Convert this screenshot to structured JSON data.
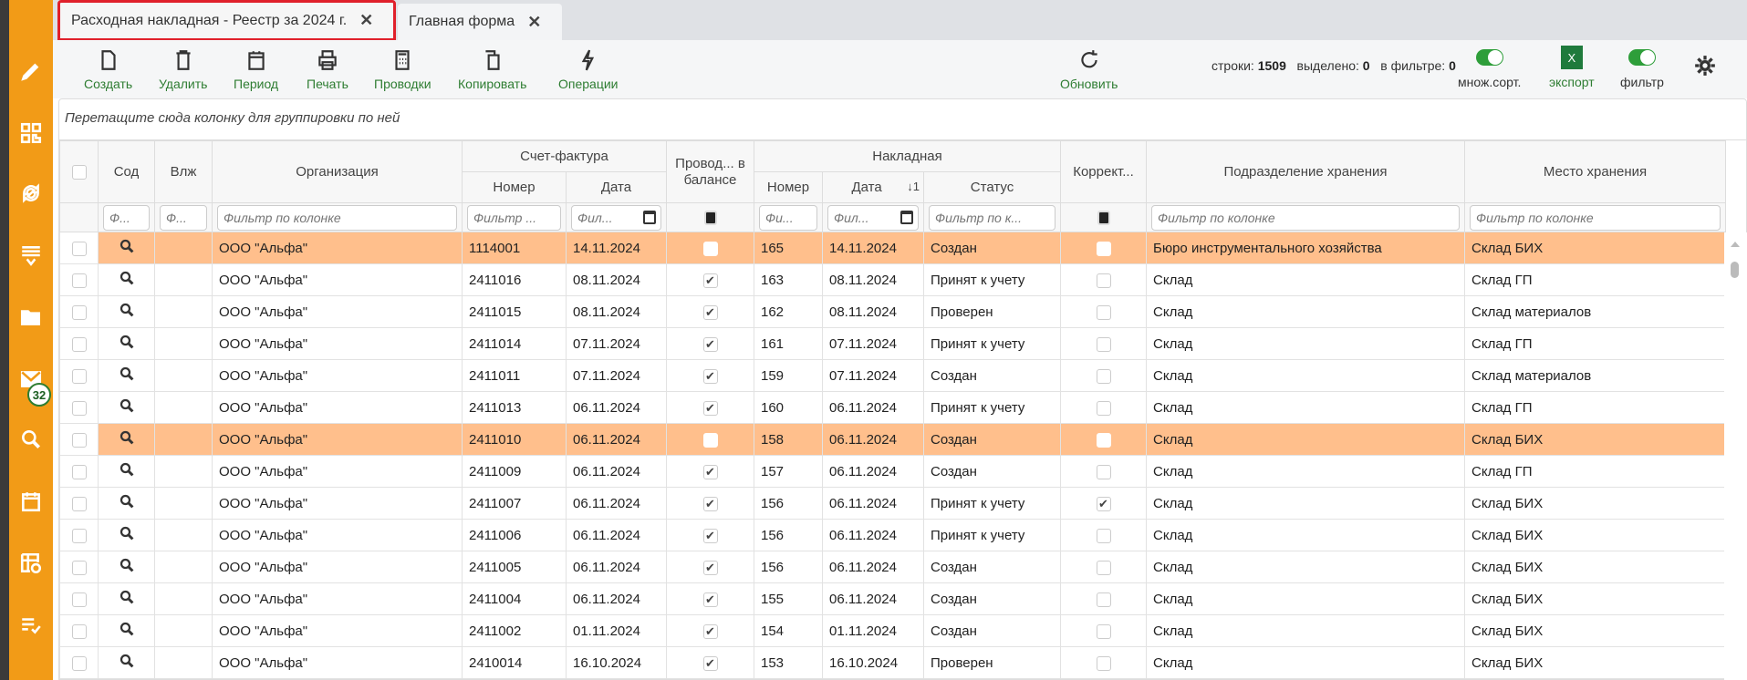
{
  "tabs": [
    {
      "label": "Расходная накладная - Реестр за 2024 г.",
      "active": true
    },
    {
      "label": "Главная форма",
      "active": false
    }
  ],
  "sidebar": {
    "items": [
      {
        "icon": "pencil-icon"
      },
      {
        "icon": "qr-code-icon"
      },
      {
        "icon": "sync-icon"
      },
      {
        "icon": "list-download-icon"
      },
      {
        "icon": "folder-open-icon"
      },
      {
        "icon": "mail-icon",
        "badge": "32"
      },
      {
        "icon": "search-icon"
      },
      {
        "icon": "calendar-icon"
      },
      {
        "icon": "table-clock-icon"
      },
      {
        "icon": "list-check-icon"
      }
    ]
  },
  "toolbar": {
    "create": "Создать",
    "delete": "Удалить",
    "period": "Период",
    "print": "Печать",
    "postings": "Проводки",
    "copy": "Копировать",
    "operations": "Операции",
    "refresh": "Обновить",
    "stats": {
      "rows_label": "строки:",
      "rows": "1509",
      "selected_label": "выделено:",
      "selected": "0",
      "filter_label": "в фильтре:",
      "filter": "0"
    },
    "multisort": "множ.сорт.",
    "export": "экспорт",
    "export_icon": "X",
    "filter_toggle": "фильтр"
  },
  "group_panel": "Перетащите сюда колонку для группировки по ней",
  "columns": {
    "sod": "Сод",
    "vlzh": "Влж",
    "org": "Организация",
    "invoice": "Счет-фактура",
    "number": "Номер",
    "date": "Дата",
    "posted": "Провод... в балансе",
    "waybill": "Накладная",
    "wb_number": "Номер",
    "wb_date": "Дата",
    "sort_indicator": "↓1",
    "status": "Статус",
    "correct": "Коррект...",
    "subdivision": "Подразделение хранения",
    "place": "Место хранения"
  },
  "filters": {
    "short": "Ф...",
    "full": "Фильтр по колонке",
    "number": "Фильтр ...",
    "date": "Фил...",
    "wb_number": "Фи...",
    "status": "Фильтр по к..."
  },
  "colors": {
    "highlight": "#ffbf8c",
    "accent": "#2e7d32",
    "sidebar": "#f29b17",
    "active_tab_border": "#e0202b"
  },
  "rows": [
    {
      "org": "ООО \"Альфа\"",
      "inv_no": "1114001",
      "inv_date": "14.11.2024",
      "posted": false,
      "wb_no": "165",
      "wb_date": "14.11.2024",
      "status": "Создан",
      "corr": false,
      "sub": "Бюро инструментального хозяйства",
      "place": "Склад БИХ",
      "hl": true
    },
    {
      "org": "ООО \"Альфа\"",
      "inv_no": "2411016",
      "inv_date": "08.11.2024",
      "posted": true,
      "wb_no": "163",
      "wb_date": "08.11.2024",
      "status": "Принят к учету",
      "corr": false,
      "sub": "Склад",
      "place": "Склад ГП"
    },
    {
      "org": "ООО \"Альфа\"",
      "inv_no": "2411015",
      "inv_date": "08.11.2024",
      "posted": true,
      "wb_no": "162",
      "wb_date": "08.11.2024",
      "status": "Проверен",
      "corr": false,
      "sub": "Склад",
      "place": "Склад материалов"
    },
    {
      "org": "ООО \"Альфа\"",
      "inv_no": "2411014",
      "inv_date": "07.11.2024",
      "posted": true,
      "wb_no": "161",
      "wb_date": "07.11.2024",
      "status": "Принят к учету",
      "corr": false,
      "sub": "Склад",
      "place": "Склад ГП"
    },
    {
      "org": "ООО \"Альфа\"",
      "inv_no": "2411011",
      "inv_date": "07.11.2024",
      "posted": true,
      "wb_no": "159",
      "wb_date": "07.11.2024",
      "status": "Создан",
      "corr": false,
      "sub": "Склад",
      "place": "Склад материалов"
    },
    {
      "org": "ООО \"Альфа\"",
      "inv_no": "2411013",
      "inv_date": "06.11.2024",
      "posted": true,
      "wb_no": "160",
      "wb_date": "06.11.2024",
      "status": "Принят к учету",
      "corr": false,
      "sub": "Склад",
      "place": "Склад ГП"
    },
    {
      "org": "ООО \"Альфа\"",
      "inv_no": "2411010",
      "inv_date": "06.11.2024",
      "posted": false,
      "wb_no": "158",
      "wb_date": "06.11.2024",
      "status": "Создан",
      "corr": false,
      "sub": "Склад",
      "place": "Склад БИХ",
      "hl": true
    },
    {
      "org": "ООО \"Альфа\"",
      "inv_no": "2411009",
      "inv_date": "06.11.2024",
      "posted": true,
      "wb_no": "157",
      "wb_date": "06.11.2024",
      "status": "Создан",
      "corr": false,
      "sub": "Склад",
      "place": "Склад ГП"
    },
    {
      "org": "ООО \"Альфа\"",
      "inv_no": "2411007",
      "inv_date": "06.11.2024",
      "posted": true,
      "wb_no": "156",
      "wb_date": "06.11.2024",
      "status": "Принят к учету",
      "corr": true,
      "sub": "Склад",
      "place": "Склад БИХ"
    },
    {
      "org": "ООО \"Альфа\"",
      "inv_no": "2411006",
      "inv_date": "06.11.2024",
      "posted": true,
      "wb_no": "156",
      "wb_date": "06.11.2024",
      "status": "Принят к учету",
      "corr": false,
      "sub": "Склад",
      "place": "Склад БИХ"
    },
    {
      "org": "ООО \"Альфа\"",
      "inv_no": "2411005",
      "inv_date": "06.11.2024",
      "posted": true,
      "wb_no": "156",
      "wb_date": "06.11.2024",
      "status": "Создан",
      "corr": false,
      "sub": "Склад",
      "place": "Склад БИХ"
    },
    {
      "org": "ООО \"Альфа\"",
      "inv_no": "2411004",
      "inv_date": "06.11.2024",
      "posted": true,
      "wb_no": "155",
      "wb_date": "06.11.2024",
      "status": "Создан",
      "corr": false,
      "sub": "Склад",
      "place": "Склад БИХ"
    },
    {
      "org": "ООО \"Альфа\"",
      "inv_no": "2411002",
      "inv_date": "01.11.2024",
      "posted": true,
      "wb_no": "154",
      "wb_date": "01.11.2024",
      "status": "Создан",
      "corr": false,
      "sub": "Склад",
      "place": "Склад БИХ"
    },
    {
      "org": "ООО \"Альфа\"",
      "inv_no": "2410014",
      "inv_date": "16.10.2024",
      "posted": true,
      "wb_no": "153",
      "wb_date": "16.10.2024",
      "status": "Проверен",
      "corr": false,
      "sub": "Склад",
      "place": "Склад БИХ"
    }
  ]
}
